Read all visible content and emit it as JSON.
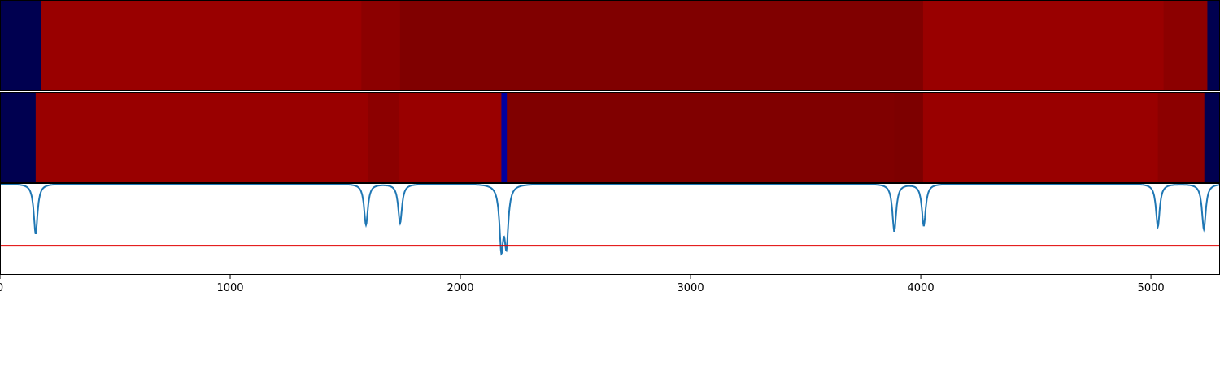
{
  "chart_data": {
    "type": "heatmap",
    "title": "",
    "xlabel": "",
    "ylabel": "",
    "xlim": [
      0,
      5300
    ],
    "x_ticks": [
      0,
      1000,
      2000,
      3000,
      4000,
      5000
    ],
    "x_tick_labels": [
      "0",
      "1000",
      "2000",
      "3000",
      "4000",
      "5000"
    ],
    "grid": false,
    "legend": "none",
    "colors": {
      "navy": "#000050",
      "red": "#990000",
      "dark_red_a": "#8c0000",
      "dark_red_b": "#800000",
      "dark_red_c": "#7d0000",
      "blue": "#0000a0",
      "curve": "#1f77b4",
      "threshold": "#e00000"
    },
    "strip_top": [
      {
        "start": 0,
        "end": 178,
        "color": "navy"
      },
      {
        "start": 178,
        "end": 1570,
        "color": "red"
      },
      {
        "start": 1570,
        "end": 1738,
        "color": "dark_red_a"
      },
      {
        "start": 1738,
        "end": 4010,
        "color": "dark_red_b"
      },
      {
        "start": 4010,
        "end": 5055,
        "color": "red"
      },
      {
        "start": 5055,
        "end": 5245,
        "color": "dark_red_a"
      },
      {
        "start": 5245,
        "end": 5300,
        "color": "navy"
      }
    ],
    "strip_bottom": [
      {
        "start": 0,
        "end": 155,
        "color": "navy"
      },
      {
        "start": 155,
        "end": 1598,
        "color": "red"
      },
      {
        "start": 1598,
        "end": 1735,
        "color": "dark_red_a"
      },
      {
        "start": 1735,
        "end": 2178,
        "color": "red"
      },
      {
        "start": 2178,
        "end": 2202,
        "color": "blue"
      },
      {
        "start": 2202,
        "end": 3885,
        "color": "dark_red_b"
      },
      {
        "start": 3885,
        "end": 4010,
        "color": "dark_red_c"
      },
      {
        "start": 4010,
        "end": 5030,
        "color": "red"
      },
      {
        "start": 5030,
        "end": 5232,
        "color": "dark_red_a"
      },
      {
        "start": 5232,
        "end": 5300,
        "color": "navy"
      }
    ],
    "line_ylim": [
      0,
      1
    ],
    "threshold": 0.32,
    "curve_dips": [
      {
        "center": 155,
        "depth": 0.55
      },
      {
        "center": 1590,
        "depth": 0.45
      },
      {
        "center": 1738,
        "depth": 0.43
      },
      {
        "center": 2178,
        "depth": 0.66
      },
      {
        "center": 2200,
        "depth": 0.62
      },
      {
        "center": 3885,
        "depth": 0.52
      },
      {
        "center": 4013,
        "depth": 0.46
      },
      {
        "center": 5030,
        "depth": 0.47
      },
      {
        "center": 5230,
        "depth": 0.5
      }
    ]
  }
}
